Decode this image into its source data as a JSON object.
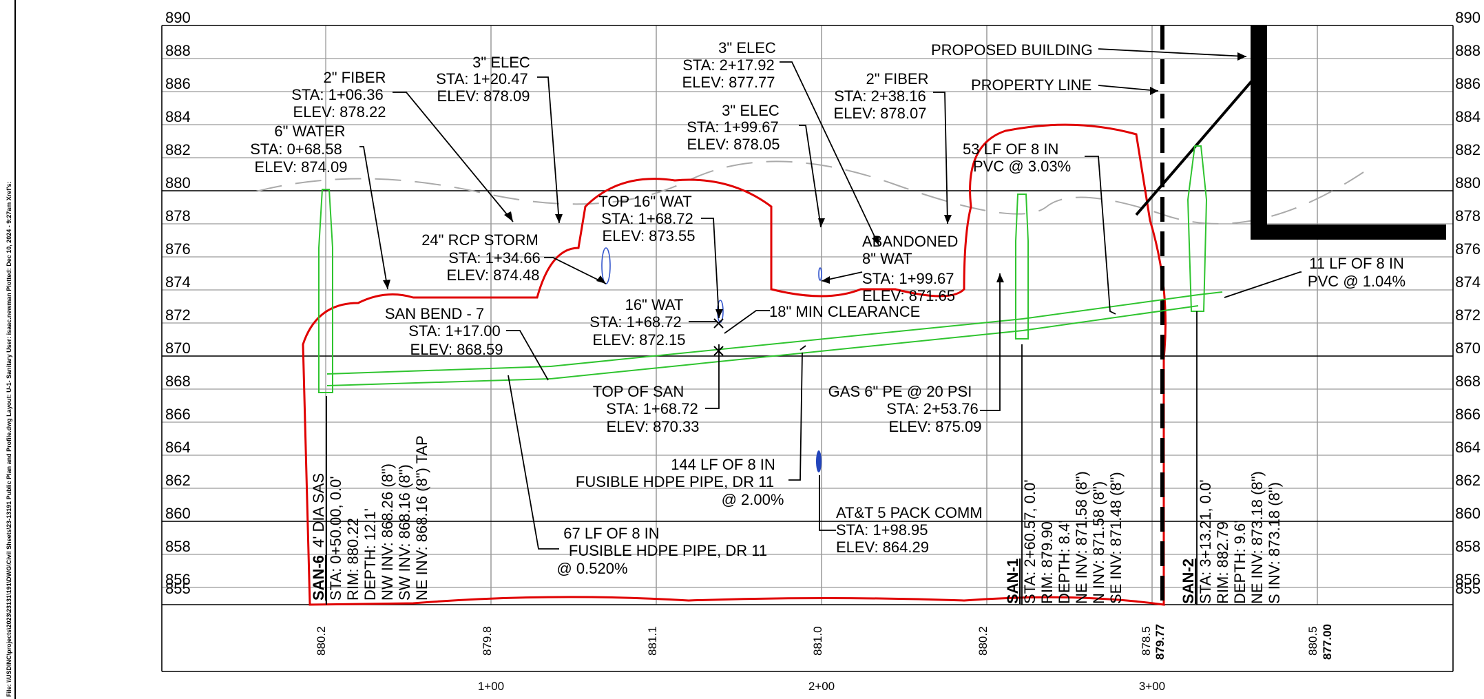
{
  "sidebar_text": "File: \\\\USDINC\\projects\\2023\\23131\\191\\DWG\\Civil Sheets\\23-13191 Public Plan and Profile.dwg  Layout: U-1- Sanitary  User: isaac.newman  Plotted: Dec 10, 2024 - 9:27am  Xref's:",
  "elevations_left": [
    "890",
    "888",
    "886",
    "884",
    "882",
    "880",
    "878",
    "876",
    "874",
    "872",
    "870",
    "868",
    "866",
    "864",
    "862",
    "860",
    "858",
    "856",
    "855"
  ],
  "elevations_right": [
    "890",
    "888",
    "886",
    "884",
    "882",
    "880",
    "878",
    "876",
    "874",
    "872",
    "870",
    "868",
    "866",
    "864",
    "862",
    "860",
    "858",
    "856",
    "855"
  ],
  "stations": [
    "1+00",
    "2+00",
    "3+00"
  ],
  "existing_ground": [
    "880.2",
    "879.8",
    "881.1",
    "881.0",
    "880.2",
    "878.5",
    "880.5"
  ],
  "proposed_ground": [
    "879.77",
    "877.00"
  ],
  "callouts": {
    "fiber2_a": [
      "2\" FIBER",
      "STA: 1+06.36",
      "ELEV: 878.22"
    ],
    "water6": [
      "6\" WATER",
      "STA: 0+68.58",
      "ELEV: 874.09"
    ],
    "elec3_a": [
      "3\" ELEC",
      "STA: 1+20.47",
      "ELEV: 878.09"
    ],
    "elec3_b": [
      "3\" ELEC",
      "STA: 2+17.92",
      "ELEV: 877.77"
    ],
    "elec3_c": [
      "3\" ELEC",
      "STA: 1+99.67",
      "ELEV: 878.05"
    ],
    "fiber2_b": [
      "2\" FIBER",
      "STA: 2+38.16",
      "ELEV: 878.07"
    ],
    "proposed_building": "PROPOSED BUILDING",
    "property_line": "PROPERTY LINE",
    "pvc53": [
      "53 LF OF 8 IN",
      "PVC @ 3.03%"
    ],
    "top16wat": [
      "TOP 16\" WAT",
      "STA: 1+68.72",
      "ELEV: 873.55"
    ],
    "rcp24": [
      "24\" RCP STORM",
      "STA: 1+34.66",
      "ELEV: 874.48"
    ],
    "abandoned": [
      "ABANDONED",
      "8\" WAT",
      "STA: 1+99.67",
      "ELEV: 871.65"
    ],
    "pvc11": [
      "11 LF OF 8 IN",
      "PVC @ 1.04%"
    ],
    "sanbend": [
      "SAN BEND - 7",
      "STA: 1+17.00",
      "ELEV: 868.59"
    ],
    "wat16": [
      "16\" WAT",
      "STA: 1+68.72",
      "ELEV: 872.15"
    ],
    "clearance": "18\" MIN CLEARANCE",
    "topsan": [
      "TOP OF SAN",
      "STA: 1+68.72",
      "ELEV: 870.33"
    ],
    "gas6": [
      "GAS 6\" PE @ 20 PSI",
      "STA: 2+53.76",
      "ELEV: 875.09"
    ],
    "hdpe144": [
      "144 LF OF 8 IN",
      "FUSIBLE HDPE PIPE, DR 11",
      "@ 2.00%"
    ],
    "att": [
      "AT&T 5 PACK COMM",
      "STA: 1+98.95",
      "ELEV: 864.29"
    ],
    "hdpe67": [
      "67 LF OF 8 IN",
      "FUSIBLE HDPE PIPE, DR 11",
      "@ 0.520%"
    ]
  },
  "structures": {
    "san6": {
      "name": "SAN-6",
      "desc": "4' DIA SAS",
      "lines": [
        "STA: 0+50.00, 0.0'",
        "RIM: 880.22",
        "DEPTH: 12.1'",
        "NW INV: 868.26 (8\")",
        "SW INV: 868.16 (8\")",
        "NE INV: 868.16 (8\") TAP"
      ]
    },
    "san1": {
      "name": "SAN-1",
      "lines": [
        "STA: 2+60.57, 0.0'",
        "RIM: 879.90",
        "DEPTH: 8.4'",
        "NE INV: 871.58 (8\")",
        "N INV: 871.58 (8\")",
        "SE INV: 871.48 (8\")"
      ]
    },
    "san2": {
      "name": "SAN-2",
      "lines": [
        "STA: 3+13.21, 0.0'",
        "RIM: 882.79",
        "DEPTH: 9.6'",
        "NE INV: 873.18 (8\")",
        "S INV: 873.18 (8\")"
      ]
    }
  }
}
